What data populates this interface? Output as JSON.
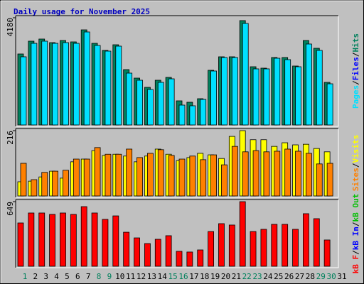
{
  "chart_data": {
    "type": "bar",
    "title": "Daily usage for November 2025",
    "categories": [
      "1",
      "2",
      "3",
      "4",
      "5",
      "6",
      "7",
      "8",
      "9",
      "10",
      "11",
      "12",
      "13",
      "14",
      "15",
      "16",
      "17",
      "18",
      "19",
      "20",
      "21",
      "22",
      "23",
      "24",
      "25",
      "26",
      "27",
      "28",
      "29",
      "30",
      "31"
    ],
    "label_colors": [
      "#00805c",
      "#000000",
      "#000000",
      "#000000",
      "#000000",
      "#000000",
      "#000000",
      "#00805c",
      "#00805c",
      "#000000",
      "#000000",
      "#000000",
      "#000000",
      "#000000",
      "#00805c",
      "#00805c",
      "#000000",
      "#000000",
      "#000000",
      "#000000",
      "#000000",
      "#00805c",
      "#00805c",
      "#000000",
      "#000000",
      "#000000",
      "#000000",
      "#000000",
      "#00805c",
      "#00805c",
      "#000000"
    ],
    "legend_separator": "/",
    "panels": [
      {
        "ylim": [
          0,
          4180
        ],
        "yticks": [
          4180
        ],
        "series": [
          {
            "name": "Hits",
            "color": "#00805c",
            "values": [
              2768,
              3267,
              3350,
              3211,
              3294,
              3239,
              3709,
              3183,
              2907,
              3128,
              2159,
              1827,
              1467,
              1744,
              1855,
              941,
              886,
              1024,
              2132,
              2658,
              2658,
              4070,
              2270,
              2215,
              2630,
              2630,
              2298,
              3294,
              2990,
              1661,
              null
            ]
          },
          {
            "name": "Files",
            "color": "#0000ff"
          },
          {
            "name": "Pages",
            "color": "#00e0ff",
            "values": [
              2658,
              3183,
              3267,
              3183,
              3211,
              3183,
              3626,
              3100,
              2879,
              3073,
              2021,
              1744,
              1384,
              1661,
              1799,
              775,
              748,
              997,
              2104,
              2630,
              2630,
              3958,
              2187,
              2187,
              2602,
              2547,
              2270,
              3156,
              2907,
              1605,
              null
            ]
          }
        ]
      },
      {
        "ylim": [
          0,
          216
        ],
        "yticks": [
          216
        ],
        "series": [
          {
            "name": "Visits",
            "color": "#ffff00",
            "values": [
              47,
              49,
              63,
              82,
              59,
              113,
              122,
              150,
              134,
              138,
              132,
              113,
              132,
              155,
              138,
              117,
              127,
              141,
              136,
              124,
              197,
              216,
              186,
              186,
              164,
              176,
              169,
              171,
              157,
              146,
              null
            ]
          },
          {
            "name": "Sites",
            "color": "#ff8000",
            "values": [
              108,
              54,
              78,
              82,
              85,
              122,
              122,
              160,
              138,
              138,
              155,
              127,
              141,
              153,
              134,
              122,
              132,
              120,
              136,
              103,
              164,
              146,
              150,
              146,
              148,
              155,
              148,
              141,
              106,
              108,
              null
            ]
          }
        ]
      },
      {
        "ylim": [
          0,
          649
        ],
        "yticks": [
          649
        ],
        "series": [
          {
            "name": "kB Out",
            "color": "#00c000"
          },
          {
            "name": "kB In",
            "color": "#0000ff"
          },
          {
            "name": "kB F",
            "color": "#ff0000",
            "values": [
              435,
              535,
              535,
              521,
              535,
              521,
              599,
              535,
              471,
              506,
              342,
              285,
              228,
              271,
              307,
              150,
              143,
              164,
              349,
              428,
              414,
              649,
              349,
              371,
              421,
              421,
              371,
              528,
              478,
              264,
              null
            ]
          }
        ]
      }
    ]
  }
}
